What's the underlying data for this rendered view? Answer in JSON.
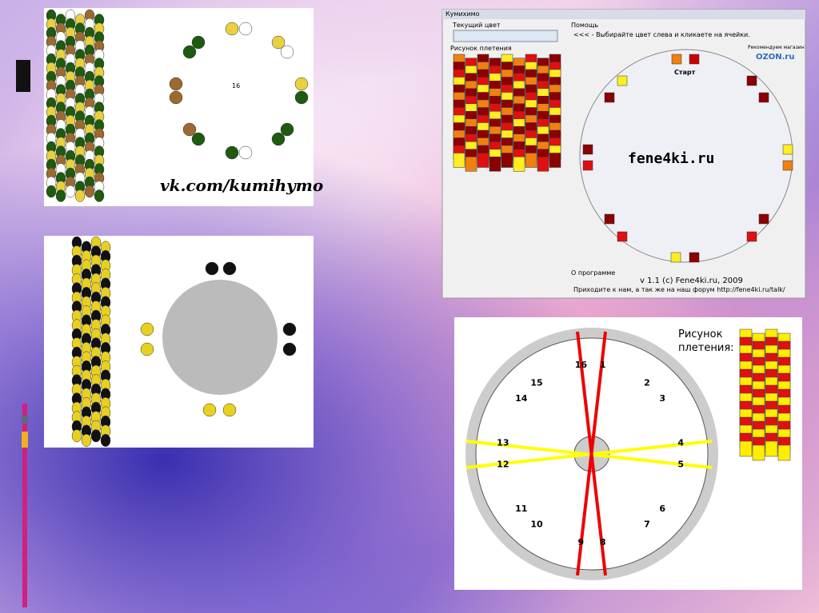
{
  "photo_top_left": {
    "center_label": "16",
    "caption": "vk.com/kumihymo"
  },
  "app_window": {
    "title": "Кумихимо",
    "current_color_label": "Текущий цвет",
    "help_label": "Помощь",
    "help_text": "<<< - Выбирайте цвет слева и кликаете на ячейки.",
    "pattern_label": "Рисунок плетения",
    "shop_label": "Рекомендуем магазин",
    "shop_logo": "OZON.ru",
    "start_label": "Старт",
    "watermark": "fene4ki.ru",
    "about_label": "О программе",
    "version": "v 1.1 (c) Fene4ki.ru, 2009",
    "forum_text": "Приходите к нам, а так же на наш форум http://fene4ki.ru/talk/"
  },
  "disk_diagram": {
    "pattern_label": "Рисунок плетения:",
    "slot_numbers": [
      "1",
      "2",
      "3",
      "4",
      "5",
      "6",
      "7",
      "8",
      "9",
      "10",
      "11",
      "12",
      "13",
      "14",
      "15",
      "16"
    ]
  }
}
